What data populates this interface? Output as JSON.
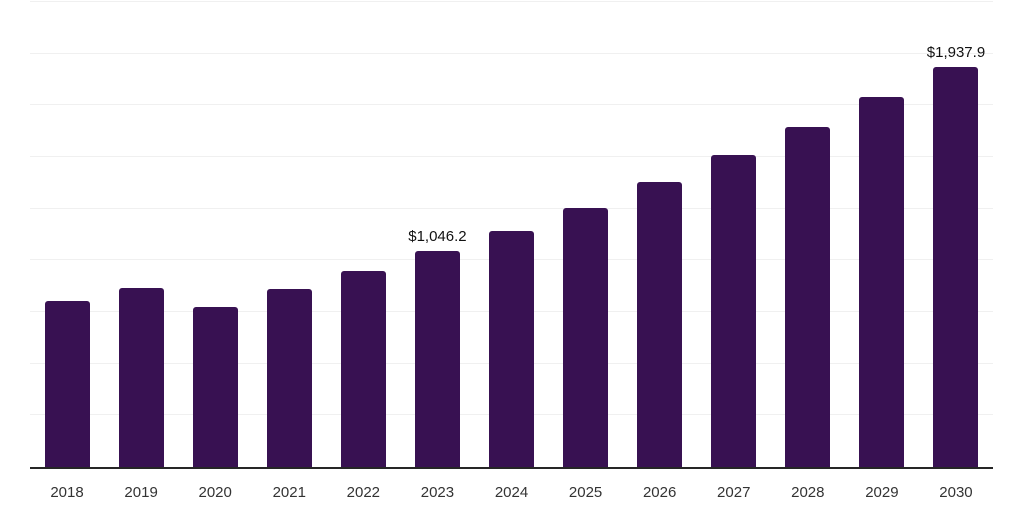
{
  "chart_data": {
    "type": "bar",
    "title": "",
    "xlabel": "",
    "ylabel": "",
    "categories": [
      "2018",
      "2019",
      "2020",
      "2021",
      "2022",
      "2023",
      "2024",
      "2025",
      "2026",
      "2027",
      "2028",
      "2029",
      "2030"
    ],
    "values": [
      805,
      868,
      776,
      863,
      950,
      1046.2,
      1143,
      1254,
      1379,
      1509,
      1644,
      1789,
      1937.9
    ],
    "value_labels": [
      "",
      "",
      "",
      "",
      "",
      "$1,046.2",
      "",
      "",
      "",
      "",
      "",
      "",
      "$1,937.9"
    ],
    "ylim": [
      0,
      2250
    ],
    "grid_interval": 250,
    "grid_on": true,
    "legend": "none",
    "colors": {
      "bar": "#381152",
      "axis_line": "#262626",
      "gridline": "#f0f0f0",
      "tick_label": "#333333",
      "value_label": "#111111",
      "background": "#ffffff"
    }
  }
}
